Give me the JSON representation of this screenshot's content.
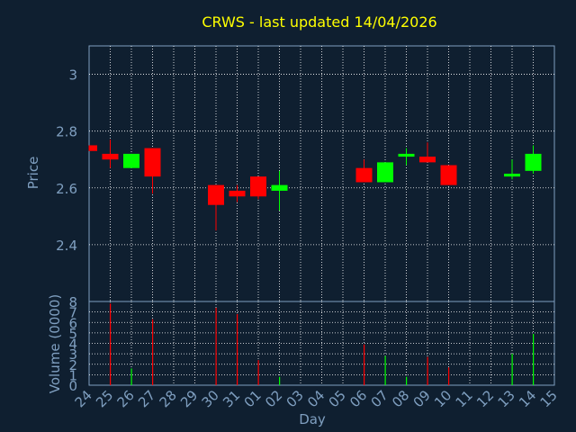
{
  "chart_data": [
    {
      "type": "candlestick",
      "title": "CRWS - last updated 14/04/2026",
      "xlabel": "",
      "ylabel": "Price",
      "ylim": [
        2.2,
        3.1
      ],
      "yticks": [
        2.4,
        2.6,
        2.8,
        3
      ],
      "grid": true,
      "x_categories": [
        "24",
        "25",
        "26",
        "27",
        "28",
        "29",
        "30",
        "31",
        "01",
        "02",
        "03",
        "04",
        "05",
        "06",
        "07",
        "08",
        "09",
        "10",
        "11",
        "12",
        "13",
        "14",
        "15"
      ],
      "candles": [
        {
          "x": "24",
          "open": 2.75,
          "close": 2.73,
          "high": 2.75,
          "low": 2.73
        },
        {
          "x": "25",
          "open": 2.72,
          "close": 2.7,
          "high": 2.77,
          "low": 2.67
        },
        {
          "x": "26",
          "open": 2.67,
          "close": 2.72,
          "high": 2.72,
          "low": 2.67
        },
        {
          "x": "27",
          "open": 2.74,
          "close": 2.64,
          "high": 2.74,
          "low": 2.58
        },
        {
          "x": "30",
          "open": 2.61,
          "close": 2.54,
          "high": 2.61,
          "low": 2.45
        },
        {
          "x": "31",
          "open": 2.59,
          "close": 2.57,
          "high": 2.61,
          "low": 2.55
        },
        {
          "x": "01",
          "open": 2.64,
          "close": 2.57,
          "high": 2.64,
          "low": 2.56
        },
        {
          "x": "02",
          "open": 2.59,
          "close": 2.61,
          "high": 2.66,
          "low": 2.52
        },
        {
          "x": "06",
          "open": 2.67,
          "close": 2.62,
          "high": 2.7,
          "low": 2.62
        },
        {
          "x": "07",
          "open": 2.62,
          "close": 2.69,
          "high": 2.69,
          "low": 2.62
        },
        {
          "x": "08",
          "open": 2.71,
          "close": 2.72,
          "high": 2.74,
          "low": 2.68
        },
        {
          "x": "09",
          "open": 2.71,
          "close": 2.69,
          "high": 2.76,
          "low": 2.69
        },
        {
          "x": "10",
          "open": 2.68,
          "close": 2.61,
          "high": 2.68,
          "low": 2.61
        },
        {
          "x": "13",
          "open": 2.64,
          "close": 2.65,
          "high": 2.7,
          "low": 2.63
        },
        {
          "x": "14",
          "open": 2.66,
          "close": 2.72,
          "high": 2.75,
          "low": 2.65
        }
      ],
      "up_color": "#00ff00",
      "down_color": "#ff0000"
    },
    {
      "type": "bar",
      "ylabel": "Volume (0000)",
      "xlabel": "Day",
      "ylim": [
        0,
        8
      ],
      "yticks": [
        0,
        1,
        2,
        3,
        4,
        5,
        6,
        7,
        8
      ],
      "grid": true,
      "categories": [
        "24",
        "25",
        "26",
        "27",
        "28",
        "29",
        "30",
        "31",
        "01",
        "02",
        "03",
        "04",
        "05",
        "06",
        "07",
        "08",
        "09",
        "10",
        "11",
        "12",
        "13",
        "14",
        "15"
      ],
      "values": [
        0,
        7.8,
        1.6,
        6.3,
        0,
        0,
        7.4,
        6.8,
        2.4,
        0.8,
        0,
        0,
        0,
        3.9,
        2.8,
        0.8,
        2.7,
        1.7,
        0,
        0,
        3.0,
        4.9,
        0
      ],
      "bar_colors": [
        "",
        "#ff0000",
        "#00ff00",
        "#ff0000",
        "",
        "",
        "#ff0000",
        "#ff0000",
        "#ff0000",
        "#00ff00",
        "",
        "",
        "",
        "#ff0000",
        "#00ff00",
        "#00ff00",
        "#ff0000",
        "#ff0000",
        "",
        "",
        "#00ff00",
        "#00ff00",
        ""
      ]
    }
  ],
  "colors": {
    "background": "#0f1f30",
    "title": "#ffff00",
    "axis": "#7f9fc0",
    "grid": "#ffffff"
  }
}
